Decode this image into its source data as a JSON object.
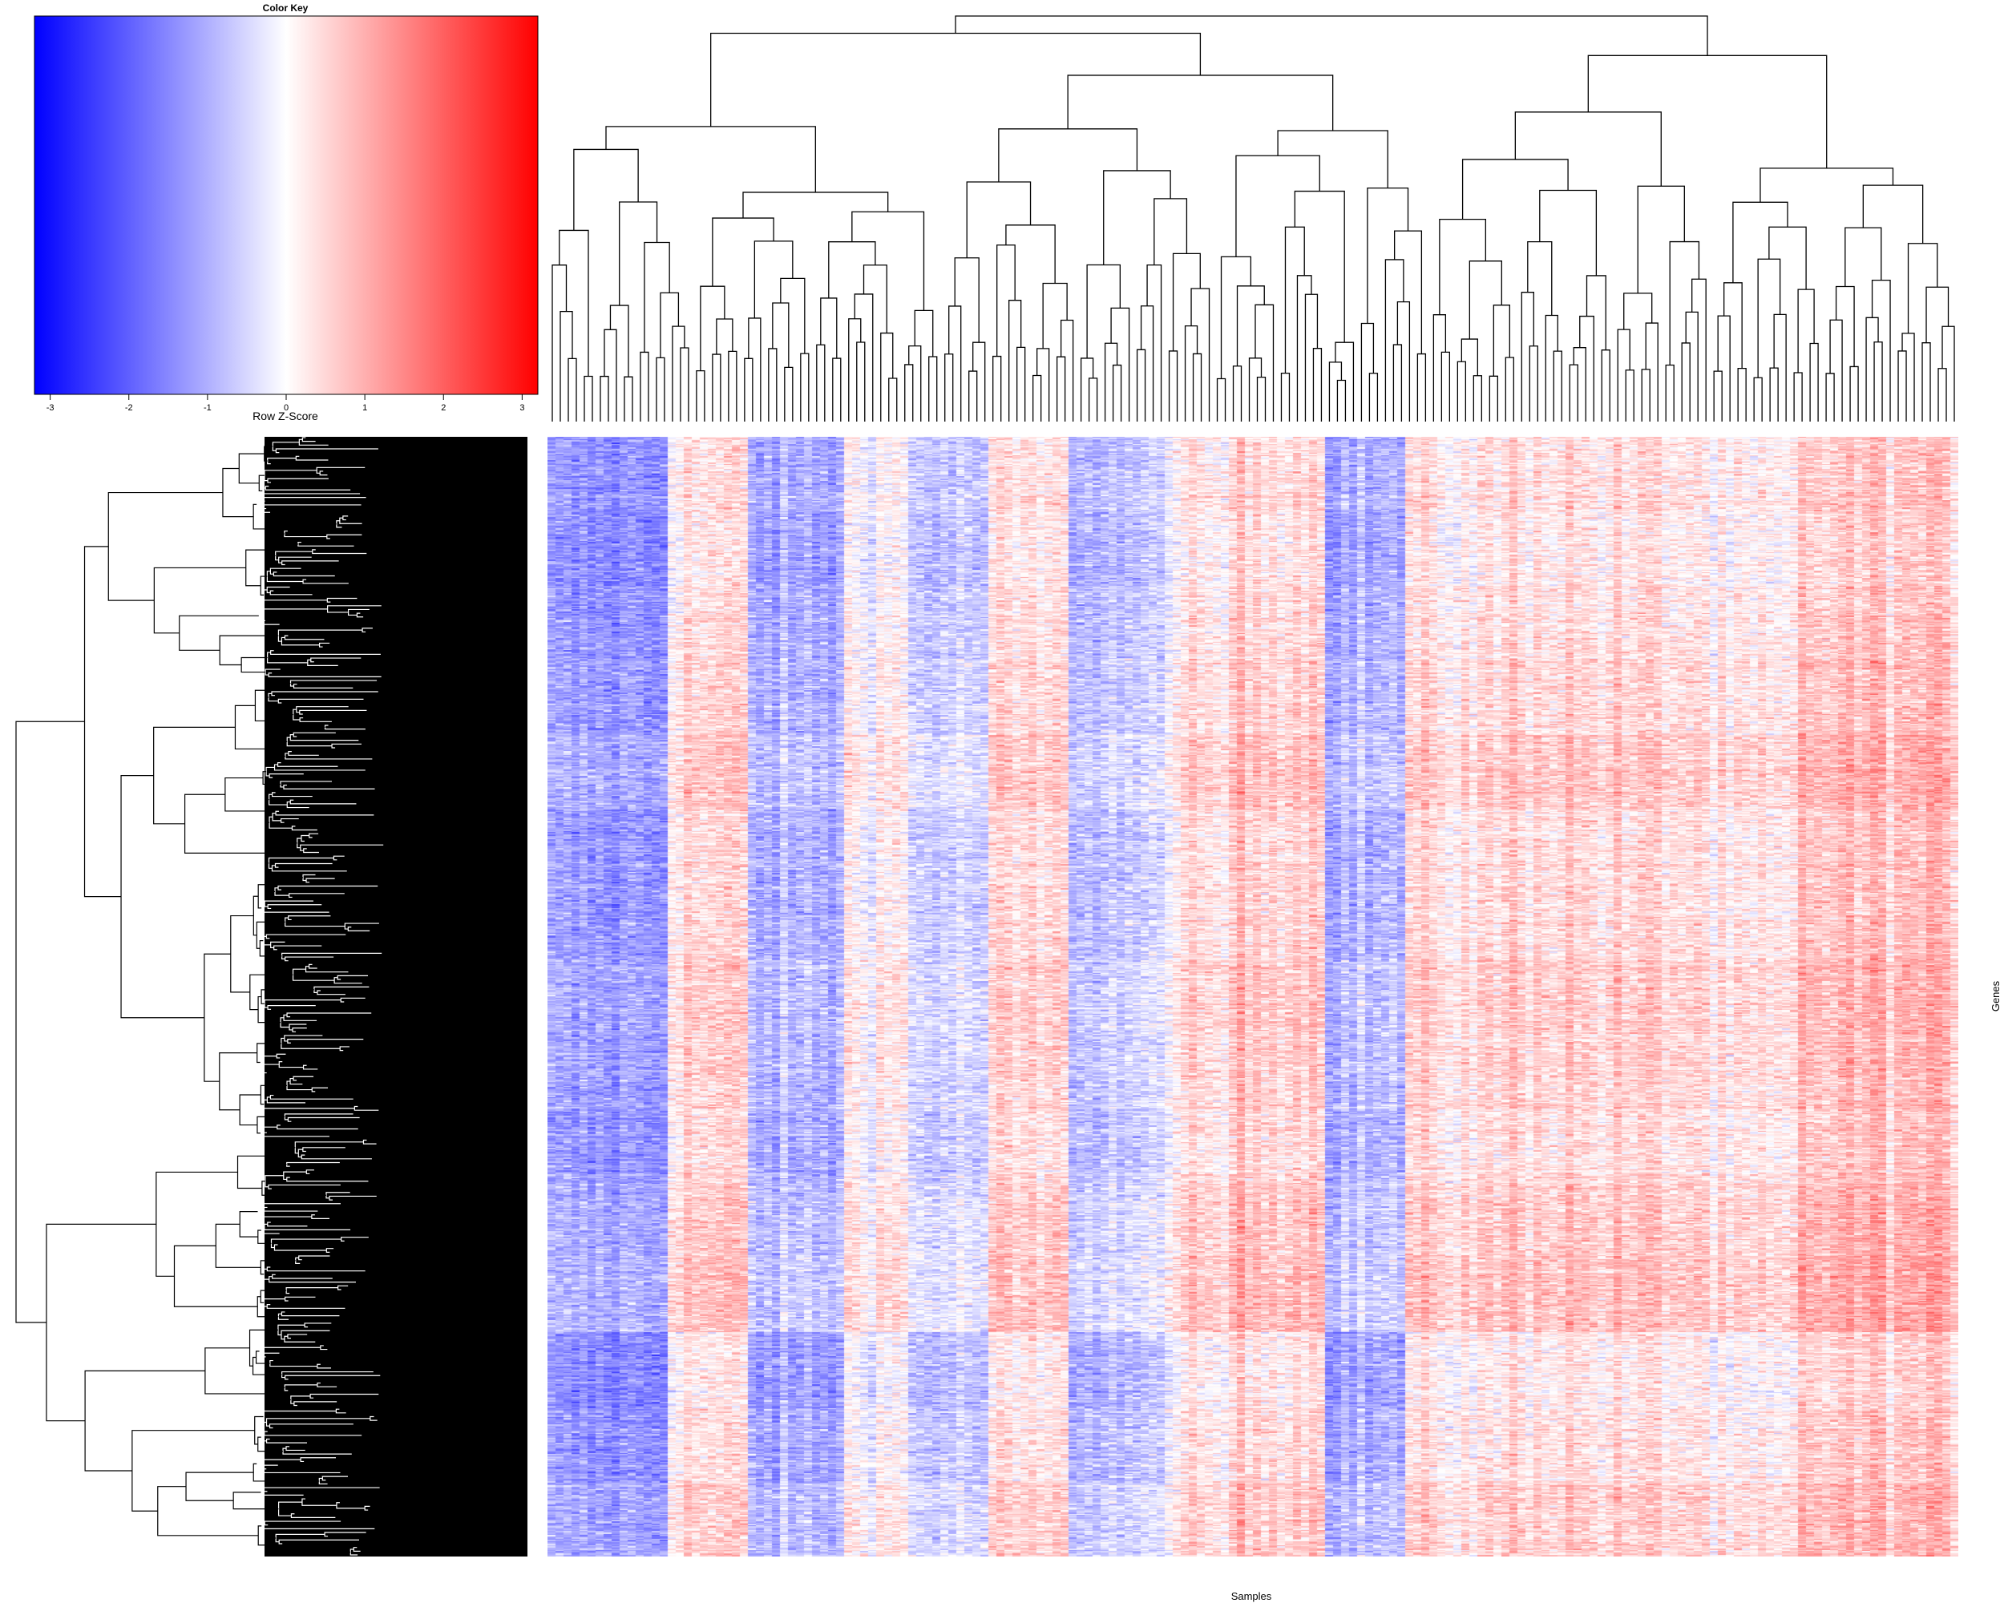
{
  "chart_data": {
    "type": "heatmap",
    "title": "",
    "xlabel": "Samples",
    "ylabel": "Genes",
    "n_columns": 176,
    "n_rows": 900,
    "column_dendrogram": true,
    "row_dendrogram": true,
    "color_scale": {
      "low": "#0000ff",
      "mid": "#ffffff",
      "high": "#ff0000"
    },
    "color_key": {
      "title": "Color Key",
      "label": "Row Z-Score",
      "range": [
        -3.2,
        3.2
      ],
      "ticks": [
        "-3",
        "-2",
        "-1",
        "0",
        "1",
        "2",
        "3"
      ],
      "tick_values": [
        -3,
        -2,
        -1,
        0,
        1,
        2,
        3
      ]
    },
    "column_groups": [
      {
        "span": 15,
        "level": -1.2
      },
      {
        "span": 10,
        "level": 0.5
      },
      {
        "span": 12,
        "level": -0.9
      },
      {
        "span": 8,
        "level": 0.2
      },
      {
        "span": 10,
        "level": -0.5
      },
      {
        "span": 10,
        "level": 0.4
      },
      {
        "span": 12,
        "level": -0.6
      },
      {
        "span": 8,
        "level": 0.3
      },
      {
        "span": 12,
        "level": 0.7
      },
      {
        "span": 10,
        "level": -0.8
      },
      {
        "span": 12,
        "level": 0.4
      },
      {
        "span": 10,
        "level": 0.6
      },
      {
        "span": 16,
        "level": 0.5
      },
      {
        "span": 11,
        "level": 0.2
      },
      {
        "span": 20,
        "level": 0.8
      }
    ]
  }
}
